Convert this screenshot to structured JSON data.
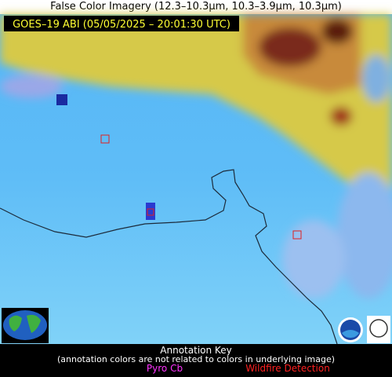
{
  "header": {
    "title": "False Color Imagery (12.3–10.3µm, 10.3–3.9µm, 10.3µm)",
    "timestamp": "GOES–19 ABI (05/05/2025 – 20:01:30 UTC)"
  },
  "key": {
    "title": "Annotation Key",
    "note": "(annotation colors are not related to colors in underlying image)",
    "items": [
      "Pyro Cb",
      "Wildfire Detection"
    ]
  }
}
